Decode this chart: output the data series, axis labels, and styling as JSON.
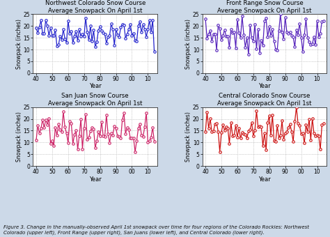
{
  "titles": [
    [
      "Northwest Colorado Snow Course",
      "Average Snowpack On April 1st"
    ],
    [
      "Front Range Snow Course",
      "Average Snowpack On April 1st"
    ],
    [
      "San Juan Snow Course",
      "Average Snowpack On April 1st"
    ],
    [
      "Central Colorado Snow Course",
      "Average Snowpack On April 1st"
    ]
  ],
  "colors": [
    "#2222cc",
    "#5522bb",
    "#cc2266",
    "#cc1111"
  ],
  "xlabel": "Year",
  "ylabel": "Snowpack (inches)",
  "ylim": [
    0,
    25
  ],
  "yticks": [
    0,
    5,
    10,
    15,
    20,
    25
  ],
  "xtick_vals": [
    40,
    50,
    60,
    70,
    80,
    90,
    100,
    110
  ],
  "xticklabels": [
    "40",
    "50",
    "60",
    "70",
    "80",
    "90",
    "00",
    "10"
  ],
  "xlim_lo": 38,
  "xlim_hi": 116,
  "background_color": "#ccd9e8",
  "panel_bg": "#ffffff",
  "caption": "Figure 3. Change in the manually-observed April 1st snowpack over time for four regions of the Colorado Rockies: Northwest\nColorado (upper left), Front Range (upper right), San Juans (lower left), and Central Colorado (lower right).",
  "seeds": [
    42,
    7,
    13,
    99
  ],
  "means": [
    17.5,
    16.5,
    14.0,
    15.0
  ],
  "stds": [
    3.2,
    3.8,
    4.2,
    3.8
  ],
  "n_points": 75
}
